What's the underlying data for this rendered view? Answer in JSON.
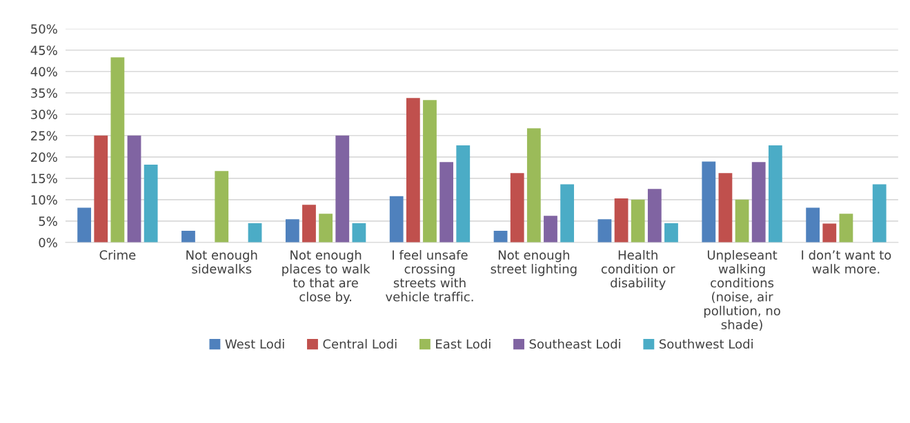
{
  "chart_data": {
    "type": "bar",
    "categories": [
      "Crime",
      "Not enough\nsidewalks",
      "Not enough\nplaces to walk\nto that are\nclose by.",
      "I feel unsafe\ncrossing\nstreets with\nvehicle traffic.",
      "Not enough\nstreet lighting",
      "Health\ncondition or\ndisability",
      "Unpleseant\nwalking\nconditions\n(noise, air\npollution, no\nshade)",
      "I don’t want to\nwalk more."
    ],
    "series": [
      {
        "name": "West Lodi",
        "color": "#4f81bd",
        "values": [
          8.1,
          2.7,
          5.4,
          10.8,
          2.7,
          5.4,
          18.9,
          8.1
        ]
      },
      {
        "name": "Central Lodi",
        "color": "#c0504d",
        "values": [
          25,
          0,
          8.8,
          33.8,
          16.2,
          10.3,
          16.2,
          4.4
        ]
      },
      {
        "name": "East Lodi",
        "color": "#9bbb59",
        "values": [
          43.3,
          16.7,
          6.7,
          33.3,
          26.7,
          10,
          10,
          6.7
        ]
      },
      {
        "name": "Southeast Lodi",
        "color": "#8064a2",
        "values": [
          25,
          0,
          25,
          18.8,
          6.2,
          12.5,
          18.8,
          0
        ]
      },
      {
        "name": "Southwest Lodi",
        "color": "#4bacc6",
        "values": [
          18.2,
          4.5,
          4.5,
          22.7,
          13.6,
          4.5,
          22.7,
          13.6
        ]
      }
    ],
    "ylim": [
      0,
      50
    ],
    "yticks": [
      {
        "value": 0,
        "label": "0%"
      },
      {
        "value": 5,
        "label": "5%"
      },
      {
        "value": 10,
        "label": "10%"
      },
      {
        "value": 15,
        "label": "15%"
      },
      {
        "value": 20,
        "label": "20%"
      },
      {
        "value": 25,
        "label": "25%"
      },
      {
        "value": 30,
        "label": "30%"
      },
      {
        "value": 35,
        "label": "35%"
      },
      {
        "value": 40,
        "label": "40%"
      },
      {
        "value": 45,
        "label": "45%"
      },
      {
        "value": 50,
        "label": "50%"
      }
    ],
    "grid": "y",
    "legend": "bottom"
  }
}
